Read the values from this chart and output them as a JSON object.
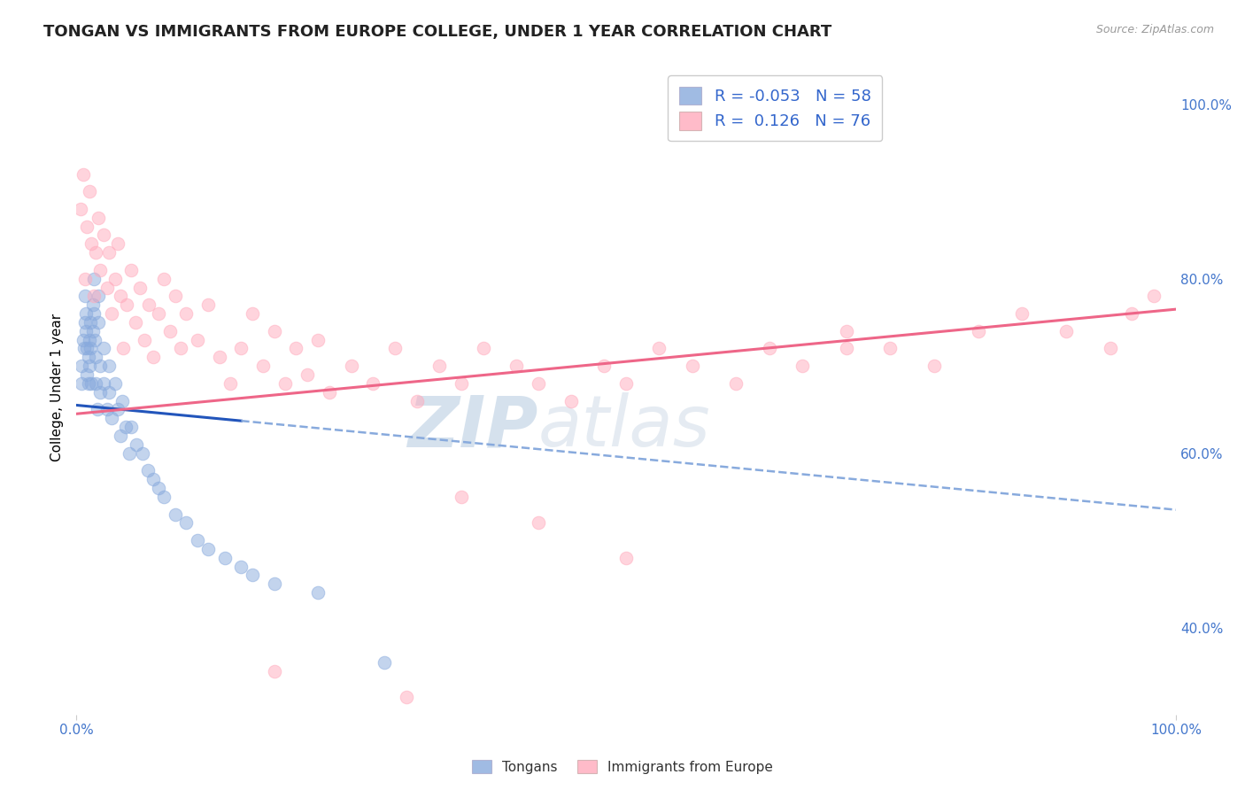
{
  "title": "TONGAN VS IMMIGRANTS FROM EUROPE COLLEGE, UNDER 1 YEAR CORRELATION CHART",
  "source_text": "Source: ZipAtlas.com",
  "ylabel": "College, Under 1 year",
  "xlim": [
    0,
    1
  ],
  "ylim": [
    0.3,
    1.05
  ],
  "yticks": [
    0.4,
    0.6,
    0.8,
    1.0
  ],
  "ytick_labels": [
    "40.0%",
    "60.0%",
    "80.0%",
    "100.0%"
  ],
  "watermark_zip": "ZIP",
  "watermark_atlas": "atlas",
  "legend_R1": "-0.053",
  "legend_N1": "58",
  "legend_R2": "0.126",
  "legend_N2": "76",
  "tongans_color": "#88aadd",
  "europe_color": "#ffaabc",
  "trend1_solid_color": "#2255bb",
  "trend1_dash_color": "#88aadd",
  "trend2_color": "#ee6688",
  "background_color": "#ffffff",
  "grid_color": "#cccccc",
  "title_fontsize": 13,
  "axis_fontsize": 11,
  "tick_color": "#4477cc",
  "legend_color_blue": "#3366cc",
  "legend_color_pink": "#ee4466"
}
